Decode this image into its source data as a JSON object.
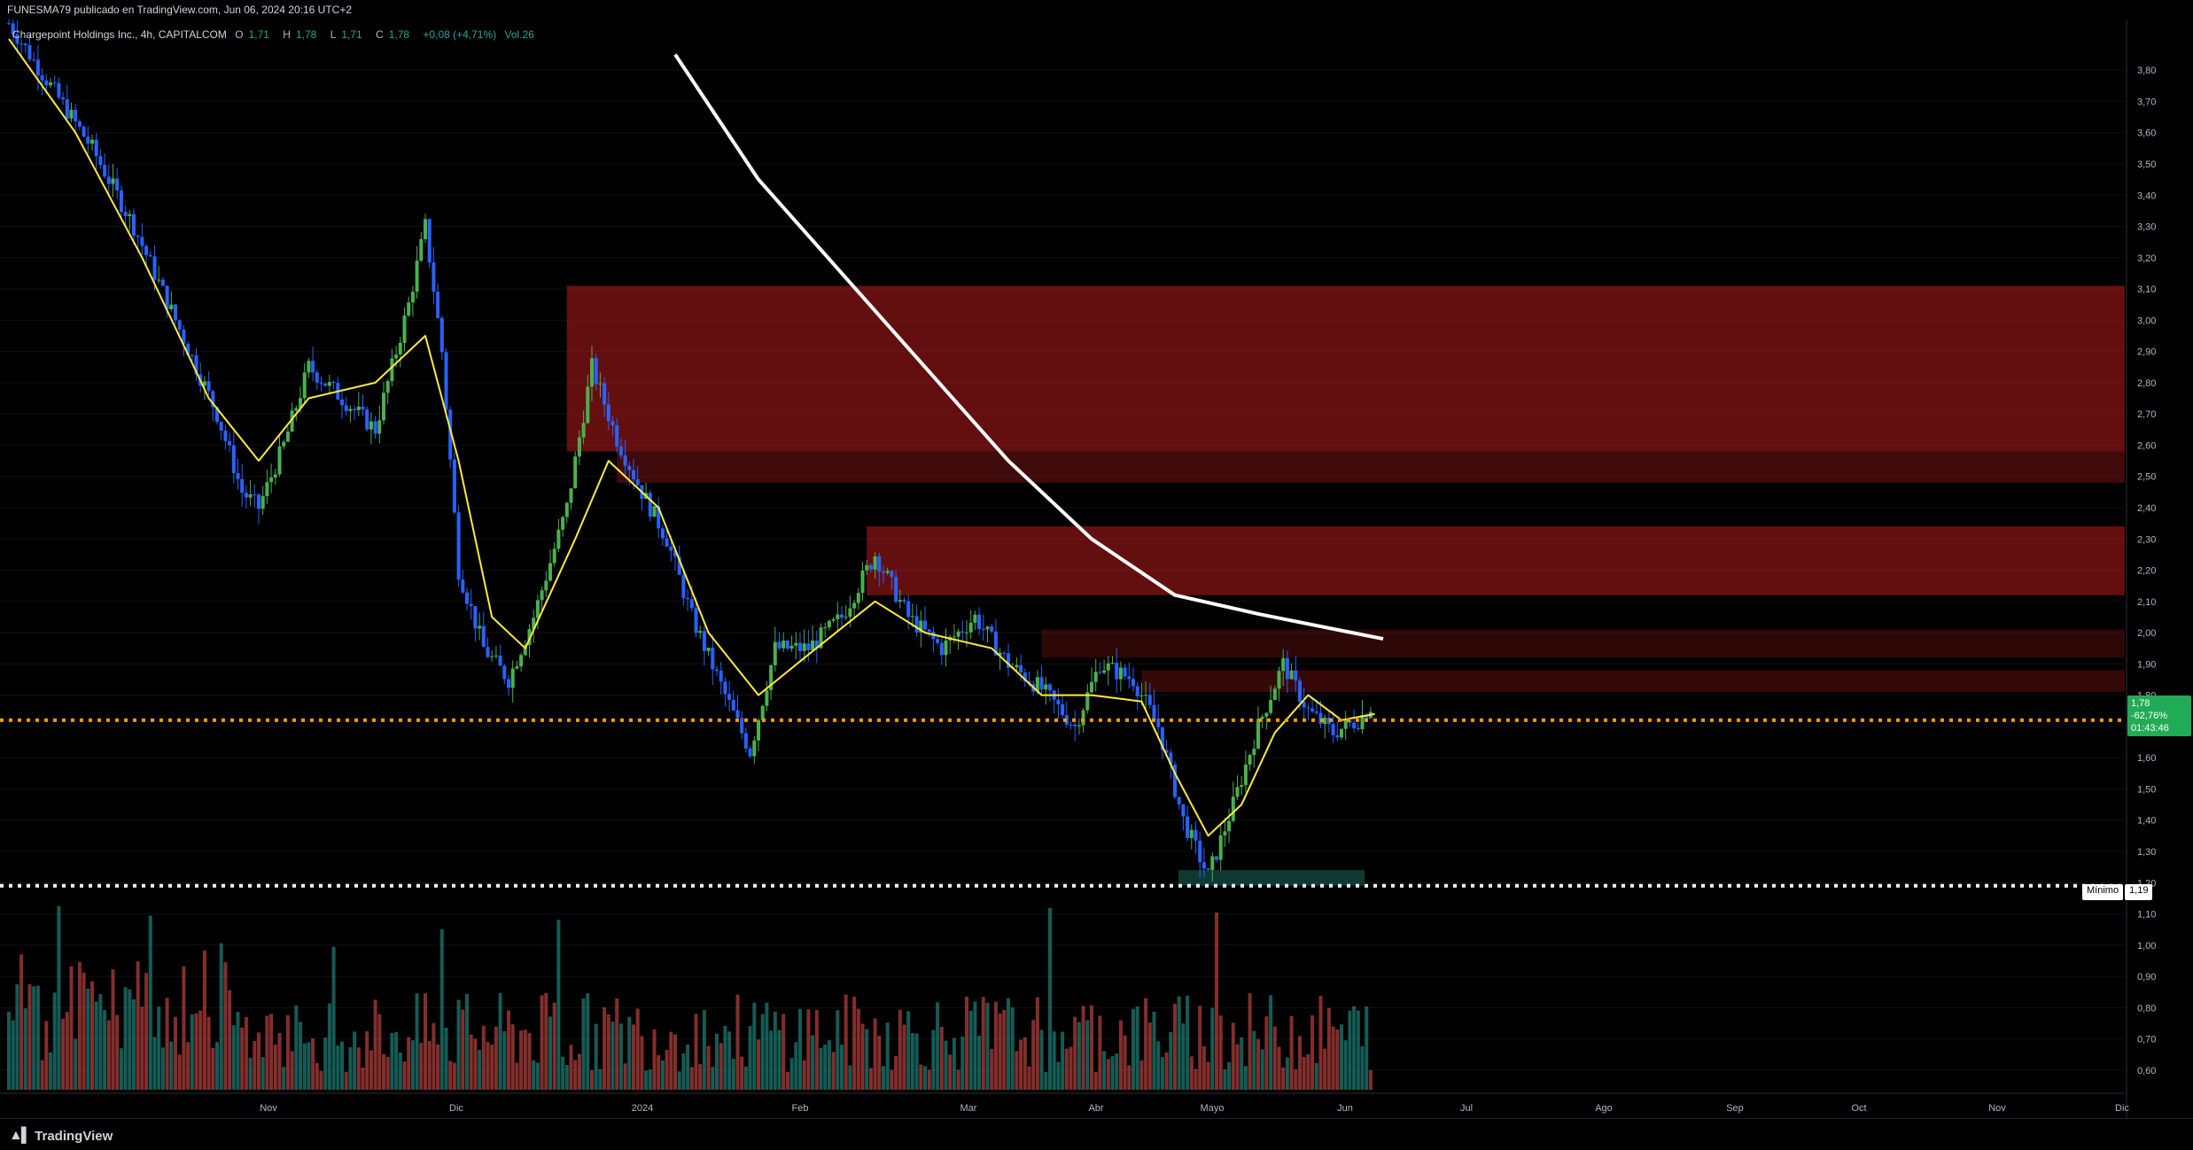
{
  "header": {
    "publish_line": "FUNESMA79 publicado en TradingView.com, Jun 06, 2024 20:16 UTC+2"
  },
  "legend": {
    "symbol": "Chargepoint Holdings Inc., 4h, CAPITALCOM",
    "open_label": "O",
    "open": "1,71",
    "high_label": "H",
    "high": "1,78",
    "low_label": "L",
    "low": "1,71",
    "close_label": "C",
    "close": "1,78",
    "change": "+0,08 (+4,71%)",
    "volume": "Vol.26"
  },
  "price_tag": {
    "price": "1,78",
    "change_pct": "-62,76%",
    "countdown": "01:43:46"
  },
  "minimum_marker": {
    "label": "Mínimo",
    "value": "1,19"
  },
  "branding": {
    "name": "TradingView"
  },
  "colors": {
    "background": "#000000",
    "up": "#26a69a",
    "down": "#ef5350",
    "candle_up": "#4caf50",
    "candle_down": "#2962ff",
    "ma_fast": "#ffeb3b",
    "ma_slow": "#ffffff",
    "supply_zone": "#b71c1c",
    "level_orange": "#ff9800"
  },
  "chart_data": {
    "type": "candlestick",
    "interval": "4h",
    "y_ticks": [
      "3,80",
      "3,70",
      "3,60",
      "3,50",
      "3,40",
      "3,30",
      "3,20",
      "3,10",
      "3,00",
      "2,90",
      "2,80",
      "2,70",
      "2,60",
      "2,50",
      "2,40",
      "2,30",
      "2,20",
      "2,10",
      "2,00",
      "1,90",
      "1,80",
      "1,70",
      "1,60",
      "1,50",
      "1,40",
      "1,30",
      "1,20",
      "1,10",
      "1,00",
      "0,90",
      "0,80",
      "0,70",
      "0,60"
    ],
    "ylim": [
      0.56,
      3.86
    ],
    "x_ticks": [
      "Nov",
      "Dic",
      "2024",
      "Feb",
      "Mar",
      "Abr",
      "Mayo",
      "Jun",
      "Jul",
      "Ago",
      "Sep",
      "Oct",
      "Nov",
      "Dic"
    ],
    "price_path": [
      [
        0,
        3.95
      ],
      [
        5,
        3.75
      ],
      [
        10,
        3.55
      ],
      [
        15,
        3.3
      ],
      [
        20,
        3.0
      ],
      [
        25,
        2.7
      ],
      [
        28,
        2.45
      ],
      [
        30,
        2.4
      ],
      [
        33,
        2.6
      ],
      [
        36,
        2.85
      ],
      [
        40,
        2.75
      ],
      [
        44,
        2.65
      ],
      [
        48,
        3.05
      ],
      [
        50,
        3.3
      ],
      [
        52,
        2.9
      ],
      [
        54,
        2.2
      ],
      [
        57,
        1.95
      ],
      [
        60,
        1.85
      ],
      [
        63,
        2.05
      ],
      [
        67,
        2.4
      ],
      [
        70,
        2.85
      ],
      [
        73,
        2.62
      ],
      [
        76,
        2.45
      ],
      [
        79,
        2.3
      ],
      [
        82,
        2.05
      ],
      [
        86,
        1.8
      ],
      [
        89,
        1.62
      ],
      [
        92,
        1.95
      ],
      [
        96,
        1.95
      ],
      [
        100,
        2.05
      ],
      [
        104,
        2.25
      ],
      [
        108,
        2.05
      ],
      [
        112,
        1.95
      ],
      [
        116,
        2.05
      ],
      [
        120,
        1.9
      ],
      [
        124,
        1.82
      ],
      [
        128,
        1.7
      ],
      [
        131,
        1.9
      ],
      [
        135,
        1.85
      ],
      [
        138,
        1.7
      ],
      [
        141,
        1.4
      ],
      [
        144,
        1.22
      ],
      [
        147,
        1.45
      ],
      [
        150,
        1.7
      ],
      [
        153,
        1.9
      ],
      [
        156,
        1.75
      ],
      [
        159,
        1.68
      ],
      [
        162,
        1.72
      ],
      [
        164,
        1.78
      ]
    ],
    "ma_fast_path": [
      [
        0,
        3.9
      ],
      [
        8,
        3.6
      ],
      [
        16,
        3.2
      ],
      [
        24,
        2.75
      ],
      [
        30,
        2.55
      ],
      [
        36,
        2.75
      ],
      [
        44,
        2.8
      ],
      [
        50,
        2.95
      ],
      [
        54,
        2.55
      ],
      [
        58,
        2.05
      ],
      [
        62,
        1.95
      ],
      [
        68,
        2.3
      ],
      [
        72,
        2.55
      ],
      [
        78,
        2.4
      ],
      [
        84,
        2.0
      ],
      [
        90,
        1.8
      ],
      [
        96,
        1.93
      ],
      [
        104,
        2.1
      ],
      [
        110,
        2.0
      ],
      [
        118,
        1.95
      ],
      [
        124,
        1.8
      ],
      [
        130,
        1.8
      ],
      [
        136,
        1.78
      ],
      [
        140,
        1.55
      ],
      [
        144,
        1.35
      ],
      [
        148,
        1.45
      ],
      [
        152,
        1.68
      ],
      [
        156,
        1.8
      ],
      [
        160,
        1.72
      ],
      [
        164,
        1.74
      ]
    ],
    "ma_slow_path": [
      [
        80,
        3.85
      ],
      [
        90,
        3.45
      ],
      [
        100,
        3.15
      ],
      [
        110,
        2.85
      ],
      [
        120,
        2.55
      ],
      [
        130,
        2.3
      ],
      [
        140,
        2.12
      ],
      [
        150,
        2.06
      ],
      [
        165,
        1.98
      ]
    ],
    "volume_ticks_note": "",
    "zones": [
      {
        "name": "supply-zone-upper",
        "from_x": 67,
        "y_top": 3.11,
        "y_bottom": 2.58
      },
      {
        "name": "supply-zone-band",
        "from_x": 73,
        "y_top": 2.58,
        "y_bottom": 2.48
      },
      {
        "name": "supply-zone-mid",
        "from_x": 103,
        "y_top": 2.34,
        "y_bottom": 2.12
      },
      {
        "name": "supply-zone-low1",
        "from_x": 124,
        "y_top": 2.01,
        "y_bottom": 1.92
      },
      {
        "name": "supply-zone-low2",
        "from_x": 136,
        "y_top": 1.88,
        "y_bottom": 1.81
      }
    ],
    "horizontal_levels": [
      {
        "name": "current-level",
        "value": 1.72,
        "style": "dotted",
        "color": "#ff9800"
      },
      {
        "name": "minimum-level",
        "value": 1.19,
        "style": "dotted",
        "color": "#ffffff"
      }
    ]
  }
}
